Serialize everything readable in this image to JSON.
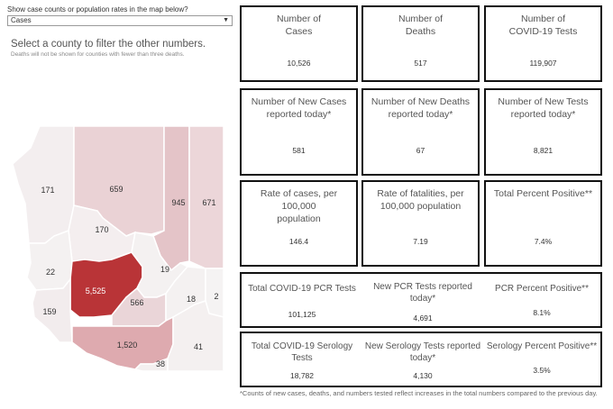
{
  "filter": {
    "label": "Show case counts or population rates in the map below?",
    "selected": "Cases"
  },
  "instruction": "Select a county to filter the other numbers.",
  "deaths_note": "Deaths will not be shown for counties with fewer than three deaths.",
  "map": {
    "counties": [
      {
        "name": "mohave",
        "label": "171",
        "color": "#f3eeef"
      },
      {
        "name": "coconino",
        "label": "659",
        "color": "#ead2d5"
      },
      {
        "name": "navajo",
        "label": "945",
        "color": "#e4c4c8"
      },
      {
        "name": "apache",
        "label": "671",
        "color": "#ecd6d9"
      },
      {
        "name": "yavapai",
        "label": "170",
        "color": "#f4eeef"
      },
      {
        "name": "la-paz",
        "label": "22",
        "color": "#f4f1f1"
      },
      {
        "name": "maricopa",
        "label": "5,525",
        "color": "#b93437"
      },
      {
        "name": "gila",
        "label": "19",
        "color": "#f4f1f1"
      },
      {
        "name": "pinal",
        "label": "566",
        "color": "#ead5d8"
      },
      {
        "name": "yuma",
        "label": "159",
        "color": "#f2eced"
      },
      {
        "name": "graham",
        "label": "18",
        "color": "#f4f1f1"
      },
      {
        "name": "greenlee",
        "label": "2",
        "color": "#f5f3f3"
      },
      {
        "name": "pima",
        "label": "1,520",
        "color": "#deaaaf"
      },
      {
        "name": "santa-cruz",
        "label": "38",
        "color": "#f4f0f0"
      },
      {
        "name": "cochise",
        "label": "41",
        "color": "#f4f0f0"
      }
    ]
  },
  "cards": {
    "cases": {
      "title": "Number of\nCases",
      "value": "10,526"
    },
    "deaths": {
      "title": "Number of\nDeaths",
      "value": "517"
    },
    "tests": {
      "title": "Number of\nCOVID-19 Tests",
      "value": "119,907"
    },
    "new_cases": {
      "title": "Number of New Cases\nreported today*",
      "value": "581"
    },
    "new_deaths": {
      "title": "Number of New Deaths\nreported today*",
      "value": "67"
    },
    "new_tests": {
      "title": "Number of New Tests\nreported today*",
      "value": "8,821"
    },
    "case_rate": {
      "title": "Rate of cases, per 100,000\npopulation",
      "value": "146.4"
    },
    "fatality_rate": {
      "title": "Rate of fatalities, per\n100,000 population",
      "value": "7.19"
    },
    "percent_positive": {
      "title": "Total Percent Positive**",
      "value": "7.4%"
    }
  },
  "pcr_row": {
    "total_title": "Total COVID-19 PCR Tests",
    "total_value": "101,125",
    "new_title": "New PCR Tests reported\ntoday*",
    "new_value": "4,691",
    "pct_title": "PCR Percent Positive**",
    "pct_value": "8.1%"
  },
  "serology_row": {
    "total_title": "Total COVID-19 Serology\nTests",
    "total_value": "18,782",
    "new_title": "New Serology Tests reported\ntoday*",
    "new_value": "4,130",
    "pct_title": "Serology Percent Positive**",
    "pct_value": "3.5%"
  },
  "footnote": "*Counts of new cases, deaths, and numbers tested reflect increases in the total numbers compared to the previous day."
}
